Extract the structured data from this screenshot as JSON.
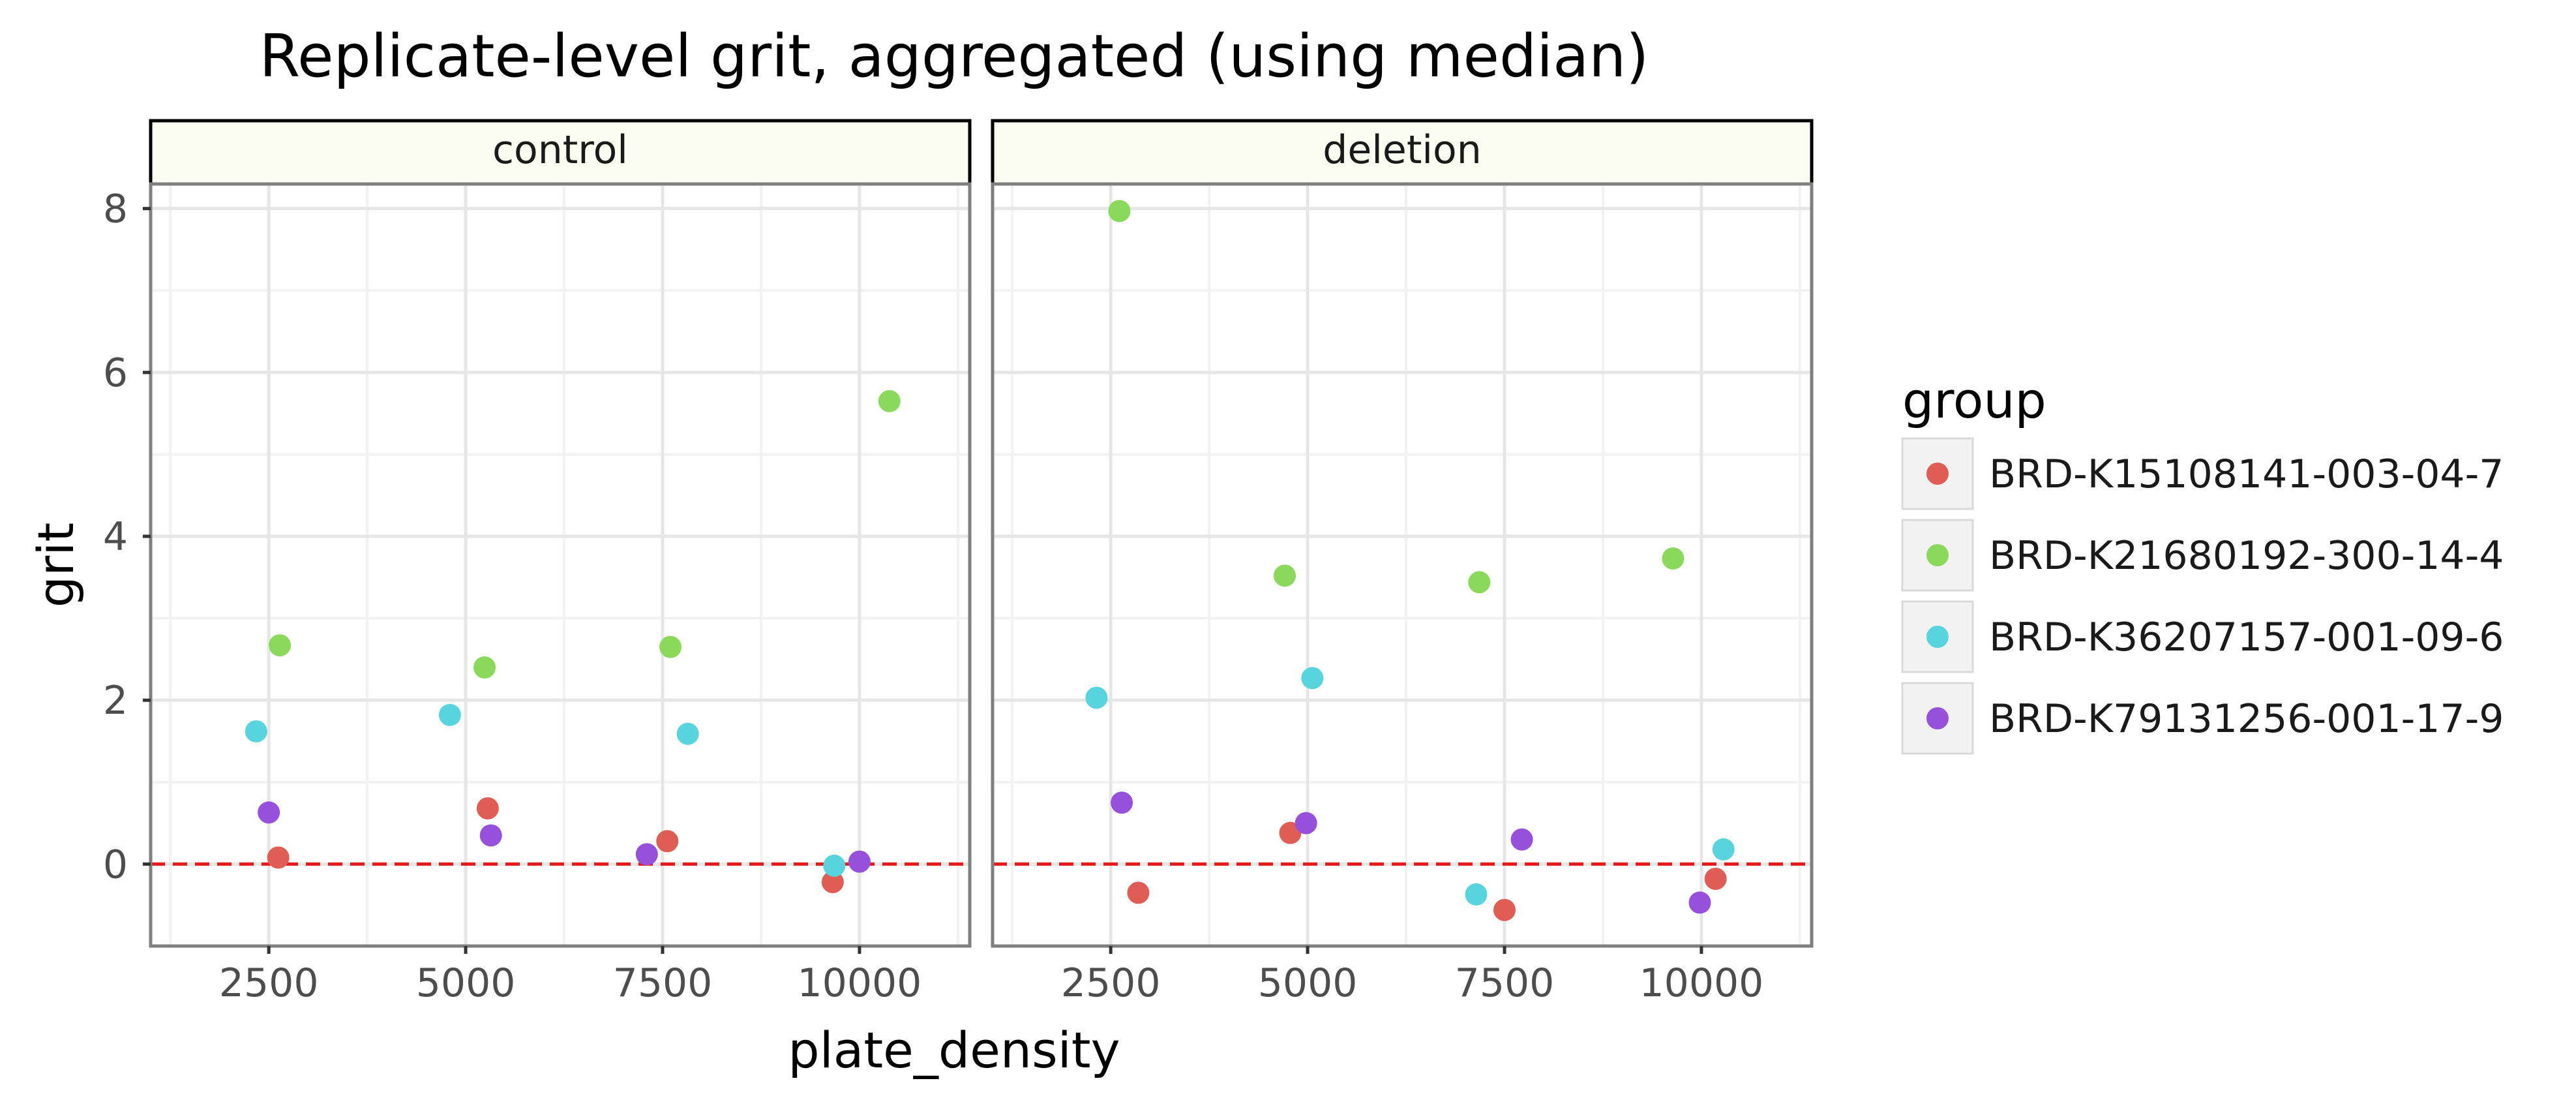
{
  "chart_data": {
    "type": "scatter",
    "title": "Replicate-level grit, aggregated (using median)",
    "xlabel": "plate_density",
    "ylabel": "grit",
    "xlim": [
      1000,
      11400
    ],
    "ylim": [
      -1,
      8.3
    ],
    "x_ticks": [
      2500,
      5000,
      7500,
      10000
    ],
    "x_tick_labels": [
      "2500",
      "5000",
      "7500",
      "10000"
    ],
    "y_ticks": [
      0,
      2,
      4,
      6,
      8
    ],
    "y_tick_labels": [
      "0",
      "2",
      "4",
      "6",
      "8"
    ],
    "reference_line": {
      "y": 0,
      "style": "dashed",
      "color": "#e41a1c"
    },
    "grid": true,
    "legend": {
      "title": "group",
      "placement": "right"
    },
    "panels": [
      "control",
      "deletion"
    ],
    "series": [
      {
        "name": "BRD-K15108141-003-04-7",
        "color": "#e05d55",
        "points": [
          {
            "panel": "control",
            "x": 2620,
            "y": 0.08
          },
          {
            "panel": "control",
            "x": 5280,
            "y": 0.68
          },
          {
            "panel": "control",
            "x": 7560,
            "y": 0.28
          },
          {
            "panel": "control",
            "x": 9660,
            "y": -0.22
          },
          {
            "panel": "deletion",
            "x": 2850,
            "y": -0.35
          },
          {
            "panel": "deletion",
            "x": 4780,
            "y": 0.38
          },
          {
            "panel": "deletion",
            "x": 7500,
            "y": -0.56
          },
          {
            "panel": "deletion",
            "x": 10180,
            "y": -0.18
          }
        ]
      },
      {
        "name": "BRD-K21680192-300-14-4",
        "color": "#8ad95a",
        "points": [
          {
            "panel": "control",
            "x": 2640,
            "y": 2.67
          },
          {
            "panel": "control",
            "x": 5240,
            "y": 2.4
          },
          {
            "panel": "control",
            "x": 7600,
            "y": 2.65
          },
          {
            "panel": "control",
            "x": 10380,
            "y": 5.65
          },
          {
            "panel": "deletion",
            "x": 2610,
            "y": 7.97
          },
          {
            "panel": "deletion",
            "x": 4710,
            "y": 3.52
          },
          {
            "panel": "deletion",
            "x": 7180,
            "y": 3.44
          },
          {
            "panel": "deletion",
            "x": 9640,
            "y": 3.73
          }
        ]
      },
      {
        "name": "BRD-K36207157-001-09-6",
        "color": "#57d4de",
        "points": [
          {
            "panel": "control",
            "x": 2340,
            "y": 1.62
          },
          {
            "panel": "control",
            "x": 4800,
            "y": 1.82
          },
          {
            "panel": "control",
            "x": 7820,
            "y": 1.59
          },
          {
            "panel": "control",
            "x": 9680,
            "y": -0.02
          },
          {
            "panel": "deletion",
            "x": 2320,
            "y": 2.03
          },
          {
            "panel": "deletion",
            "x": 5060,
            "y": 2.27
          },
          {
            "panel": "deletion",
            "x": 7140,
            "y": -0.37
          },
          {
            "panel": "deletion",
            "x": 10280,
            "y": 0.18
          }
        ]
      },
      {
        "name": "BRD-K79131256-001-17-9",
        "color": "#9650dc",
        "points": [
          {
            "panel": "control",
            "x": 2500,
            "y": 0.63
          },
          {
            "panel": "control",
            "x": 5320,
            "y": 0.35
          },
          {
            "panel": "control",
            "x": 7300,
            "y": 0.12
          },
          {
            "panel": "control",
            "x": 10000,
            "y": 0.03
          },
          {
            "panel": "deletion",
            "x": 2640,
            "y": 0.75
          },
          {
            "panel": "deletion",
            "x": 4980,
            "y": 0.5
          },
          {
            "panel": "deletion",
            "x": 7720,
            "y": 0.3
          },
          {
            "panel": "deletion",
            "x": 9980,
            "y": -0.47
          }
        ]
      }
    ]
  }
}
